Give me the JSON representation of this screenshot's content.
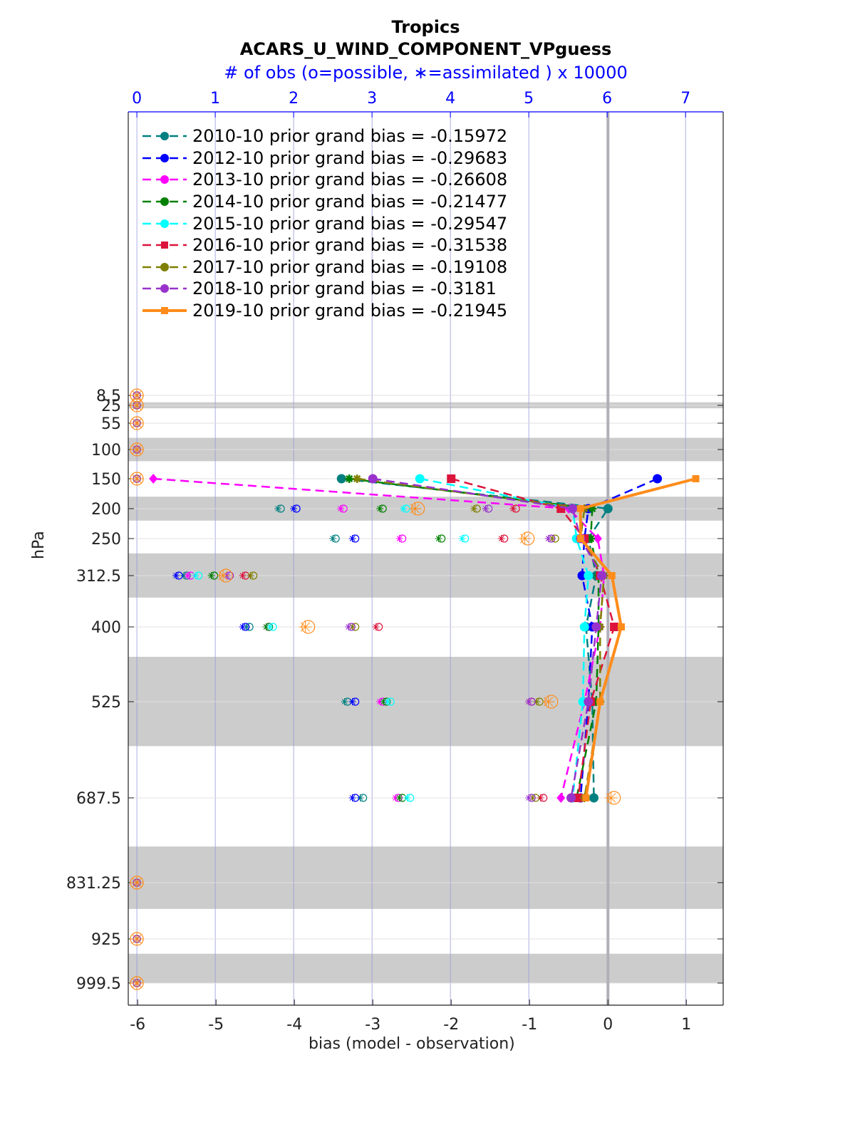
{
  "chart_data": {
    "type": "line",
    "title": "Tropics",
    "subtitle": "ACARS_U_WIND_COMPONENT_VPguess",
    "top_axis_label": "# of obs (o=possible, ∗=assimilated ) x 10000",
    "xlabel": "bias (model - observation)",
    "ylabel": "hPa",
    "xlim": [
      -6.12,
      1.47
    ],
    "x_ticks": [
      "-6",
      "-5",
      "-4",
      "-3",
      "-2",
      "-1",
      "0",
      "1"
    ],
    "top_xlim": [
      -0.11,
      7.48
    ],
    "top_ticks": [
      "0",
      "1",
      "2",
      "3",
      "4",
      "5",
      "6",
      "7"
    ],
    "y_levels": [
      8.5,
      25,
      55,
      100,
      150,
      200,
      250,
      312.5,
      400,
      525,
      687.5,
      831.25,
      925,
      999.5
    ],
    "y_tick_labels": [
      "8.5",
      "25",
      "55",
      "100",
      "150",
      "200",
      "250",
      "312.5",
      "400",
      "525",
      "687.5",
      "831.25",
      "925",
      "999.5"
    ],
    "bias_levels": [
      150,
      200,
      250,
      312.5,
      400,
      525,
      687.5
    ],
    "series": [
      {
        "name": "2010-10 prior grand bias = -0.15972",
        "color": "#008080",
        "marker": "circle",
        "style": "dashed",
        "values": [
          -3.4,
          0.0,
          -0.25,
          -0.15,
          -0.28,
          -0.2,
          -0.18
        ]
      },
      {
        "name": "2012-10 prior grand bias = -0.29683",
        "color": "#0000ff",
        "marker": "circle",
        "style": "dashed",
        "values": [
          0.63,
          -0.25,
          -0.3,
          -0.33,
          -0.2,
          -0.25,
          -0.35
        ]
      },
      {
        "name": "2013-10 prior grand bias = -0.26608",
        "color": "#ff00ff",
        "marker": "diamond",
        "style": "dashed",
        "values": [
          -5.8,
          -0.5,
          -0.13,
          -0.05,
          -0.1,
          -0.3,
          -0.6
        ]
      },
      {
        "name": "2014-10 prior grand bias = -0.21477",
        "color": "#008000",
        "marker": "star",
        "style": "dashed",
        "values": [
          -3.3,
          -0.2,
          -0.22,
          -0.12,
          -0.12,
          -0.15,
          -0.4
        ]
      },
      {
        "name": "2015-10 prior grand bias = -0.29547",
        "color": "#00ffff",
        "marker": "circle",
        "style": "dashed",
        "values": [
          -2.4,
          -0.45,
          -0.4,
          -0.25,
          -0.3,
          -0.32,
          -0.45
        ]
      },
      {
        "name": "2016-10 prior grand bias = -0.31538",
        "color": "#dc143c",
        "marker": "square",
        "style": "dashed",
        "values": [
          -2.0,
          -0.6,
          -0.3,
          -0.1,
          0.08,
          -0.22,
          -0.38
        ]
      },
      {
        "name": "2017-10 prior grand bias = -0.19108",
        "color": "#808000",
        "marker": "star",
        "style": "dashed",
        "values": [
          -3.2,
          -0.3,
          -0.35,
          -0.05,
          -0.1,
          -0.1,
          -0.3
        ]
      },
      {
        "name": "2018-10 prior grand bias = -0.3181",
        "color": "#9932cc",
        "marker": "circle",
        "style": "dashed",
        "values": [
          -3.0,
          -0.45,
          -0.35,
          -0.08,
          -0.15,
          -0.25,
          -0.47
        ]
      },
      {
        "name": "2019-10 prior grand bias = -0.21945",
        "color": "#ff8c1a",
        "marker": "square",
        "style": "solid",
        "values": [
          1.12,
          -0.35,
          -0.35,
          0.05,
          0.17,
          -0.1,
          -0.28
        ]
      }
    ],
    "obs_counts": {
      "levels": [
        8.5,
        25,
        55,
        100,
        150,
        200,
        250,
        312.5,
        400,
        525,
        687.5,
        831.25,
        925,
        999.5
      ],
      "series": [
        [
          0,
          0,
          0,
          0,
          0,
          1.8,
          2.5,
          0.6,
          1.4,
          2.65,
          2.85,
          0,
          0,
          0
        ],
        [
          0,
          0,
          0,
          0,
          0,
          2.0,
          2.75,
          0.5,
          1.35,
          2.75,
          2.75,
          0,
          0,
          0
        ],
        [
          0,
          0,
          0,
          0,
          0,
          2.6,
          3.35,
          0.65,
          1.65,
          3.1,
          3.3,
          0,
          0,
          0
        ],
        [
          0,
          0,
          0,
          0,
          0,
          3.1,
          3.85,
          0.95,
          1.65,
          3.15,
          3.35,
          0,
          0,
          0
        ],
        [
          0,
          0,
          0,
          0,
          0,
          3.4,
          4.15,
          0.75,
          1.7,
          3.2,
          3.45,
          0,
          0,
          0
        ],
        [
          0,
          0,
          0,
          0,
          0,
          4.8,
          4.65,
          1.35,
          3.05,
          5.0,
          5.15,
          0,
          0,
          0
        ],
        [
          0,
          0,
          0,
          0,
          0,
          4.3,
          5.3,
          1.45,
          2.75,
          5.1,
          5.05,
          0,
          0,
          0
        ],
        [
          0,
          0,
          0,
          0,
          0,
          4.45,
          5.25,
          1.15,
          2.7,
          5.0,
          5.0,
          0,
          0,
          0
        ],
        [
          0,
          0,
          0,
          0,
          0,
          3.55,
          4.95,
          1.1,
          2.15,
          5.25,
          6.05,
          0,
          0,
          0
        ]
      ]
    },
    "shaded_layers": [
      [
        20,
        30
      ],
      [
        80,
        120
      ],
      [
        180,
        220
      ],
      [
        275,
        350
      ],
      [
        450,
        600
      ],
      [
        770,
        875
      ],
      [
        950,
        1025
      ]
    ]
  }
}
